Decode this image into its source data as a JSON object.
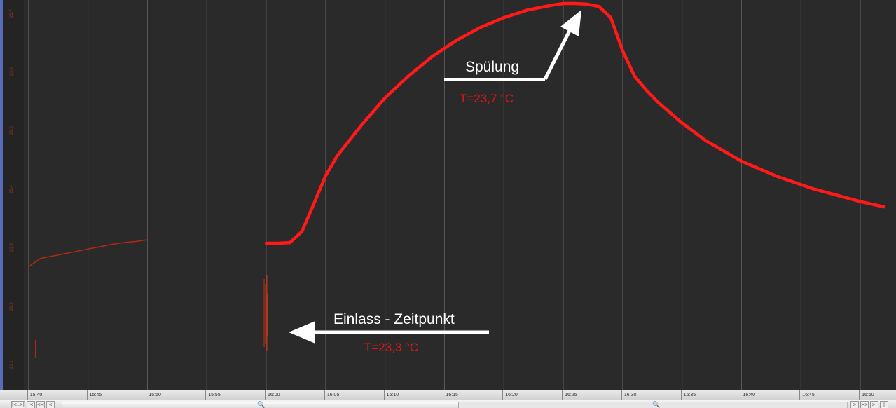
{
  "chart_data": {
    "type": "line",
    "title": "",
    "xlabel": "",
    "ylabel": "",
    "x_ticks": [
      "15:40",
      "15:45",
      "15:50",
      "15:55",
      "16:00",
      "16:05",
      "16:10",
      "16:15",
      "16:20",
      "16:25",
      "16:30",
      "16:35",
      "16:40",
      "16:45",
      "16:50"
    ],
    "y_ticks": [
      "23,1",
      "23,2",
      "23,3",
      "23,4",
      "23,5",
      "23,6",
      "23,7"
    ],
    "xlim_minutes_after_15_40": [
      -0.4,
      73.0
    ],
    "ylim": [
      23.055,
      23.72
    ],
    "grid": true,
    "series": [
      {
        "color": "#b12a10",
        "x": [
          "15:40",
          "15:41",
          "15:42",
          "15:43",
          "15:44",
          "15:45",
          "15:46",
          "15:47",
          "15:48",
          "15:49",
          "15:50"
        ],
        "y": [
          23.265,
          23.279,
          23.283,
          23.287,
          23.291,
          23.295,
          23.299,
          23.303,
          23.306,
          23.308,
          23.311
        ]
      },
      {
        "color": "#ff1a1a",
        "x": [
          "16:00",
          "16:01",
          "16:02",
          "16:03",
          "16:04",
          "16:05",
          "16:06",
          "16:08",
          "16:10",
          "16:12",
          "16:14",
          "16:16",
          "16:18",
          "16:20",
          "16:22",
          "16:24",
          "16:25",
          "16:26",
          "16:27",
          "16:28",
          "16:29",
          "16:30",
          "16:31",
          "16:32",
          "16:33",
          "16:35",
          "16:37",
          "16:40",
          "16:43",
          "16:46",
          "16:50",
          "16:52"
        ],
        "y": [
          23.305,
          23.305,
          23.306,
          23.325,
          23.372,
          23.42,
          23.455,
          23.506,
          23.553,
          23.591,
          23.624,
          23.651,
          23.673,
          23.69,
          23.703,
          23.711,
          23.714,
          23.714,
          23.713,
          23.709,
          23.69,
          23.633,
          23.59,
          23.566,
          23.545,
          23.51,
          23.48,
          23.445,
          23.419,
          23.398,
          23.376,
          23.367
        ]
      }
    ],
    "annotations": [
      {
        "label": "Einlass - Zeitpunkt",
        "value": "T=23,3 °C"
      },
      {
        "label": "Spülung",
        "value": "T=23,7 °C"
      }
    ]
  },
  "colors": {
    "background": "#2a2a2a",
    "grid": "#5a5a5a",
    "arrow": "#ffffff"
  },
  "scrollbar": {
    "buttons_left": [
      "|<..>|",
      "|<",
      "<<",
      "<"
    ],
    "buttons_right": [
      ">",
      ">>",
      ">|",
      "|<>|"
    ],
    "zoom_icon": "magnifier-icon",
    "thumb_position": 0.5
  }
}
